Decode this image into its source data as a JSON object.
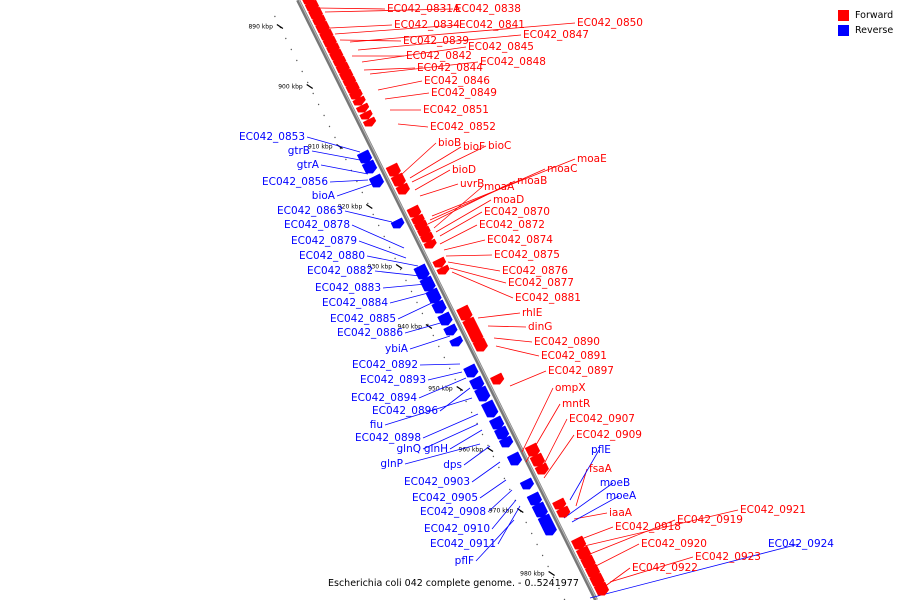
{
  "legend": {
    "forward_label": "Forward",
    "reverse_label": "Reverse",
    "forward_color": "#ff0000",
    "reverse_color": "#0000ff"
  },
  "caption": "Escherichia coli 042 complete genome. - 0..5241977",
  "scale": {
    "ticks": [
      "890 kbp",
      "900 kbp",
      "910 kbp",
      "920 kbp",
      "930 kbp",
      "940 kbp",
      "950 kbp",
      "960 kbp",
      "970 kbp",
      "980 kbp"
    ]
  },
  "genes": {
    "forward": [
      "EC042_0831A",
      "EC042_0838",
      "EC042_0834",
      "EC042_0841",
      "EC042_0850",
      "EC042_0847",
      "EC042_0839",
      "EC042_0845",
      "EC042_0842",
      "EC042_0848",
      "EC042_0844",
      "EC042_0846",
      "EC042_0849",
      "EC042_0851",
      "EC042_0852",
      "bioB",
      "bioF",
      "bioC",
      "moaE",
      "bioD",
      "moaC",
      "moaB",
      "uvrB",
      "moaA",
      "moaD",
      "EC042_0870",
      "EC042_0872",
      "EC042_0874",
      "EC042_0875",
      "EC042_0876",
      "EC042_0877",
      "EC042_0881",
      "rhlE",
      "dinG",
      "EC042_0890",
      "EC042_0891",
      "EC042_0897",
      "ompX",
      "mntR",
      "EC042_0907",
      "EC042_0909",
      "fsaA",
      "iaaA",
      "EC042_0921",
      "EC042_0919",
      "EC042_0918",
      "EC042_0920",
      "EC042_0923",
      "EC042_0922"
    ],
    "reverse": [
      "EC042_0853",
      "gtrB",
      "gtrA",
      "EC042_0856",
      "bioA",
      "EC042_0863",
      "EC042_0878",
      "EC042_0879",
      "EC042_0880",
      "EC042_0882",
      "EC042_0883",
      "EC042_0884",
      "EC042_0885",
      "EC042_0886",
      "ybiA",
      "EC042_0892",
      "EC042_0893",
      "EC042_0894",
      "EC042_0896",
      "fiu",
      "EC042_0898",
      "glnQ",
      "glnH",
      "glnP",
      "dps",
      "EC042_0903",
      "EC042_0905",
      "EC042_0908",
      "EC042_0910",
      "EC042_0911",
      "pflF",
      "pflE",
      "moeB",
      "moeA",
      "EC042_0924"
    ]
  }
}
